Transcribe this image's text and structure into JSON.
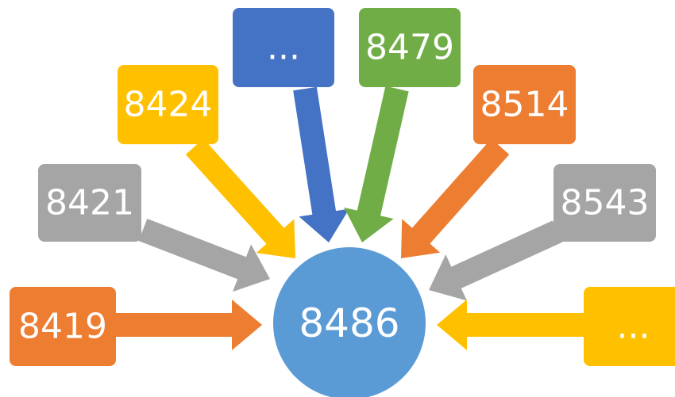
{
  "center": {
    "label": "8486"
  },
  "nodes": [
    {
      "label": "8419",
      "color": "#ED7D31"
    },
    {
      "label": "8421",
      "color": "#A5A5A5"
    },
    {
      "label": "8424",
      "color": "#FFC000"
    },
    {
      "label": "...",
      "color": "#4472C4"
    },
    {
      "label": "8479",
      "color": "#70AD47"
    },
    {
      "label": "8514",
      "color": "#ED7D31"
    },
    {
      "label": "8543",
      "color": "#A5A5A5"
    },
    {
      "label": "...",
      "color": "#FFC000"
    }
  ],
  "center_color": "#5B9BD5"
}
